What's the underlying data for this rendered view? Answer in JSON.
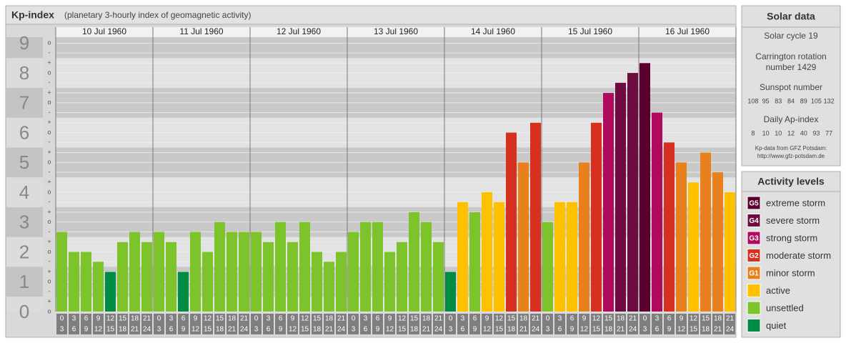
{
  "chart_data": {
    "type": "bar",
    "title": "Kp-index",
    "subtitle": "(planetary 3-hourly index of geomagnetic activity)",
    "days": [
      "10 Jul 1960",
      "11 Jul 1960",
      "12 Jul 1960",
      "13 Jul 1960",
      "14 Jul 1960",
      "15 Jul 1960",
      "16 Jul 1960"
    ],
    "time_slots": [
      {
        "start": 0,
        "end": 3
      },
      {
        "start": 3,
        "end": 6
      },
      {
        "start": 6,
        "end": 9
      },
      {
        "start": 9,
        "end": 12
      },
      {
        "start": 12,
        "end": 15
      },
      {
        "start": 15,
        "end": 18
      },
      {
        "start": 18,
        "end": 21
      },
      {
        "start": 21,
        "end": 24
      }
    ],
    "values": [
      2.67,
      2,
      2,
      1.67,
      1.33,
      2.33,
      2.67,
      2.33,
      2.67,
      2.33,
      1.33,
      2.67,
      2,
      3,
      2.67,
      2.67,
      2.67,
      2.33,
      3,
      2.33,
      3,
      2,
      1.67,
      2,
      2.67,
      3,
      3,
      2,
      2.33,
      3.33,
      3,
      2.33,
      1.33,
      3.67,
      3.33,
      4,
      3.67,
      6,
      5,
      6.33,
      3,
      3.67,
      3.67,
      5,
      6.33,
      7.33,
      7.67,
      8,
      8.33,
      6.67,
      5.67,
      5,
      4.33,
      5.33,
      4.67,
      4
    ],
    "colors": [
      "#7dc42a",
      "#7dc42a",
      "#7dc42a",
      "#7dc42a",
      "#008c45",
      "#7dc42a",
      "#7dc42a",
      "#7dc42a",
      "#7dc42a",
      "#7dc42a",
      "#008c45",
      "#7dc42a",
      "#7dc42a",
      "#7dc42a",
      "#7dc42a",
      "#7dc42a",
      "#7dc42a",
      "#7dc42a",
      "#7dc42a",
      "#7dc42a",
      "#7dc42a",
      "#7dc42a",
      "#7dc42a",
      "#7dc42a",
      "#7dc42a",
      "#7dc42a",
      "#7dc42a",
      "#7dc42a",
      "#7dc42a",
      "#7dc42a",
      "#7dc42a",
      "#7dc42a",
      "#008c45",
      "#ffc000",
      "#7dc42a",
      "#ffc000",
      "#ffc000",
      "#d7301f",
      "#e8801e",
      "#d7301f",
      "#7dc42a",
      "#ffc000",
      "#ffc000",
      "#e8801e",
      "#d7301f",
      "#b0095e",
      "#6e0b40",
      "#6e0b40",
      "#5c0030",
      "#b0095e",
      "#d7301f",
      "#e8801e",
      "#ffc000",
      "#e8801e",
      "#e8801e",
      "#ffc000"
    ],
    "ylim": [
      0,
      9.2
    ],
    "yticks": [
      0,
      1,
      2,
      3,
      4,
      5,
      6,
      7,
      8,
      9
    ],
    "minor_yticks": [
      {
        "value": 0,
        "label": "o"
      },
      {
        "value": 0.33,
        "label": "+"
      },
      {
        "value": 0.67,
        "label": "-"
      },
      {
        "value": 1,
        "label": "o"
      },
      {
        "value": 1.33,
        "label": "+"
      },
      {
        "value": 1.67,
        "label": "-"
      },
      {
        "value": 2,
        "label": "o"
      },
      {
        "value": 2.33,
        "label": "+"
      },
      {
        "value": 2.67,
        "label": "-"
      },
      {
        "value": 3,
        "label": "o"
      },
      {
        "value": 3.33,
        "label": "+"
      },
      {
        "value": 3.67,
        "label": "-"
      },
      {
        "value": 4,
        "label": "o"
      },
      {
        "value": 4.33,
        "label": "+"
      },
      {
        "value": 4.67,
        "label": "-"
      },
      {
        "value": 5,
        "label": "o"
      },
      {
        "value": 5.33,
        "label": "+"
      },
      {
        "value": 5.67,
        "label": "-"
      },
      {
        "value": 6,
        "label": "o"
      },
      {
        "value": 6.33,
        "label": "+"
      },
      {
        "value": 6.67,
        "label": "-"
      },
      {
        "value": 7,
        "label": "o"
      },
      {
        "value": 7.33,
        "label": "+"
      },
      {
        "value": 7.67,
        "label": "-"
      },
      {
        "value": 8,
        "label": "o"
      },
      {
        "value": 8.33,
        "label": "+"
      },
      {
        "value": 8.67,
        "label": "-"
      },
      {
        "value": 9,
        "label": "o"
      }
    ],
    "grid": true
  },
  "solar_data": {
    "title": "Solar data",
    "solar_cycle_label": "Solar cycle",
    "solar_cycle": 19,
    "carrington_label": "Carrington rotation",
    "carrington_number_label": "number",
    "carrington_rotation": 1429,
    "sunspot_label": "Sunspot number",
    "sunspot_numbers": [
      108,
      95,
      83,
      84,
      89,
      105,
      132
    ],
    "ap_label": "Daily Ap-index",
    "ap_index": [
      8,
      10,
      10,
      12,
      40,
      93,
      77
    ],
    "source": "Kp-data from GFZ Potsdam:",
    "source_url": "http://www.gfz-potsdam.de"
  },
  "activity_levels": {
    "title": "Activity levels",
    "items": [
      {
        "code": "G5",
        "label": "extreme storm",
        "color": "#5c0030"
      },
      {
        "code": "G4",
        "label": "severe storm",
        "color": "#6e0b40"
      },
      {
        "code": "G3",
        "label": "strong storm",
        "color": "#b0095e"
      },
      {
        "code": "G2",
        "label": "moderate storm",
        "color": "#d7301f"
      },
      {
        "code": "G1",
        "label": "minor storm",
        "color": "#e8801e"
      },
      {
        "label": "active",
        "color": "#ffc000"
      },
      {
        "label": "unsettled",
        "color": "#7dc42a"
      },
      {
        "label": "quiet",
        "color": "#008c45"
      }
    ]
  }
}
